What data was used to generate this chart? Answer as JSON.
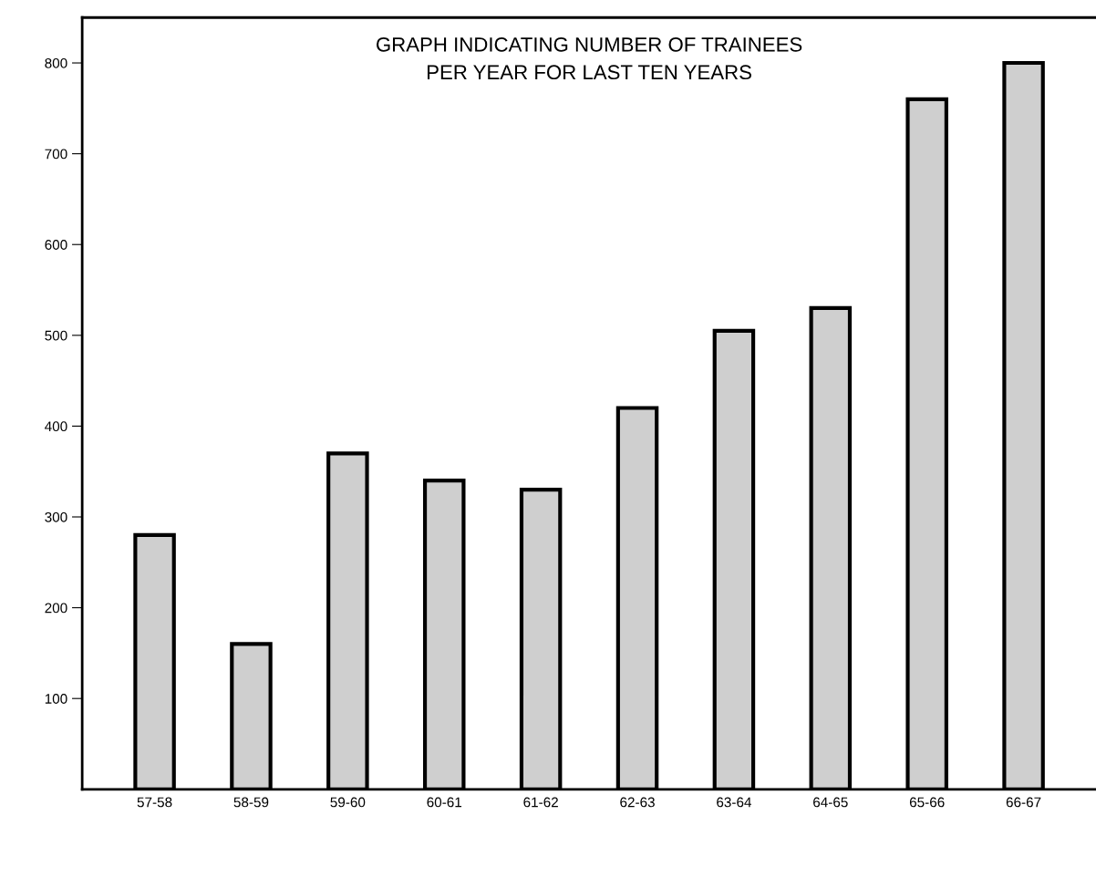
{
  "chart_data": {
    "type": "bar",
    "title": "GRAPH INDICATING NUMBER OF TRAINEES\nPER YEAR FOR LAST TEN YEARS",
    "categories": [
      "57-58",
      "58-59",
      "59-60",
      "60-61",
      "61-62",
      "62-63",
      "63-64",
      "64-65",
      "65-66",
      "66-67"
    ],
    "values": [
      280,
      160,
      370,
      340,
      330,
      420,
      505,
      530,
      760,
      800
    ],
    "color": "#cfcfcf",
    "ylim": [
      0,
      850
    ],
    "yticks": [
      100,
      200,
      300,
      400,
      500,
      600,
      700,
      800
    ],
    "grid": false
  }
}
